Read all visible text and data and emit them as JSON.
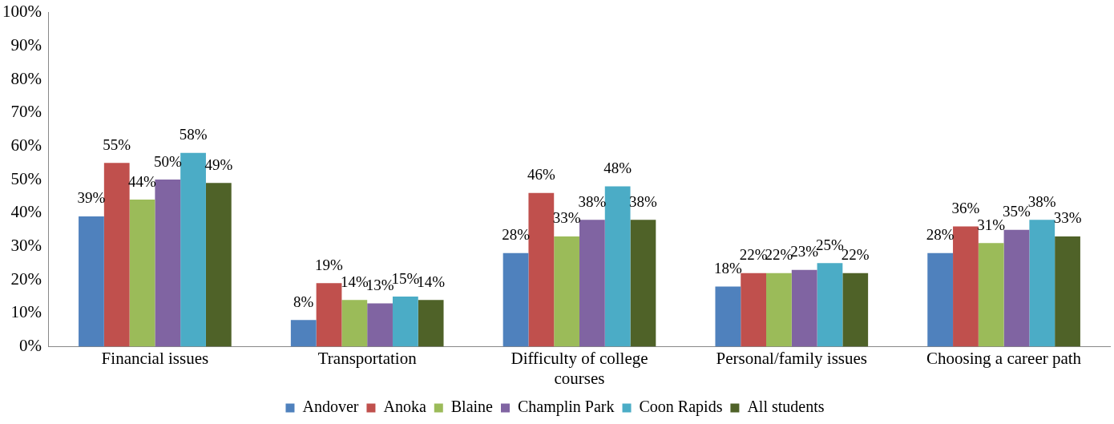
{
  "chart_data": {
    "type": "bar",
    "categories": [
      "Financial issues",
      "Transportation",
      "Difficulty of college courses",
      "Personal/family issues",
      "Choosing a career path"
    ],
    "series": [
      {
        "name": "Andover",
        "color": "#4f81bd",
        "values": [
          39,
          8,
          28,
          18,
          28
        ],
        "value_labels": [
          "39%",
          "8%",
          "28%",
          "18%",
          "28%"
        ]
      },
      {
        "name": "Anoka",
        "color": "#c0504d",
        "values": [
          55,
          19,
          46,
          22,
          36
        ],
        "value_labels": [
          "55%",
          "19%",
          "46%",
          "22%",
          "36%"
        ]
      },
      {
        "name": "Blaine",
        "color": "#9bbb59",
        "values": [
          44,
          14,
          33,
          22,
          31
        ],
        "value_labels": [
          "44%",
          "14%",
          "33%",
          "22%",
          "31%"
        ]
      },
      {
        "name": "Champlin Park",
        "color": "#8064a2",
        "values": [
          50,
          13,
          38,
          23,
          35
        ],
        "value_labels": [
          "50%",
          "13%",
          "38%",
          "23%",
          "35%"
        ]
      },
      {
        "name": "Coon Rapids",
        "color": "#4bacc6",
        "values": [
          58,
          15,
          48,
          25,
          38
        ],
        "value_labels": [
          "58%",
          "15%",
          "48%",
          "25%",
          "38%"
        ]
      },
      {
        "name": "All students",
        "color": "#4f6228",
        "values": [
          49,
          14,
          38,
          22,
          33
        ],
        "value_labels": [
          "49%",
          "14%",
          "38%",
          "22%",
          "33%"
        ]
      }
    ],
    "ylim": [
      0,
      100
    ],
    "yticks": [
      {
        "value": 0,
        "label": "0%"
      },
      {
        "value": 10,
        "label": "10%"
      },
      {
        "value": 20,
        "label": "20%"
      },
      {
        "value": 30,
        "label": "30%"
      },
      {
        "value": 40,
        "label": "40%"
      },
      {
        "value": 50,
        "label": "50%"
      },
      {
        "value": 60,
        "label": "60%"
      },
      {
        "value": 70,
        "label": "70%"
      },
      {
        "value": 80,
        "label": "80%"
      },
      {
        "value": 90,
        "label": "90%"
      },
      {
        "value": 100,
        "label": "100%"
      }
    ],
    "grid": false,
    "legend": "bottom"
  }
}
